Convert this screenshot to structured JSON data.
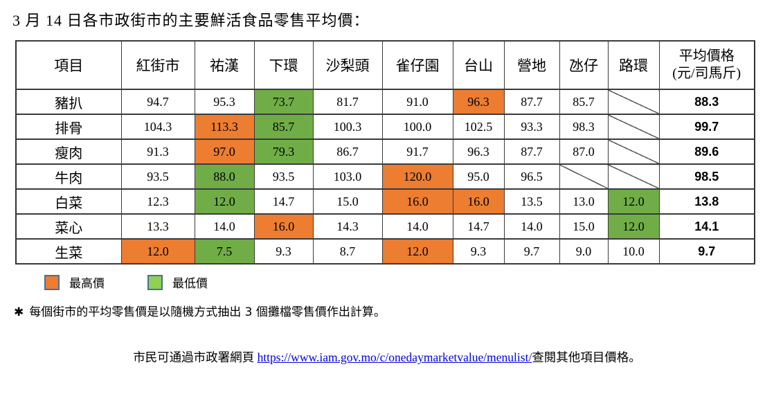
{
  "title": "3 月 14 日各市政街市的主要鮮活食品零售平均價：",
  "table": {
    "columns": [
      "項目",
      "紅街市",
      "祐漢",
      "下環",
      "沙梨頭",
      "雀仔園",
      "台山",
      "營地",
      "氹仔",
      "路環"
    ],
    "avg_header_line1": "平均價格",
    "avg_header_line2": "(元/司馬斤)",
    "rows": [
      {
        "item": "豬扒",
        "values": [
          {
            "v": "94.7"
          },
          {
            "v": "95.3"
          },
          {
            "v": "73.7",
            "hl": "min"
          },
          {
            "v": "81.7"
          },
          {
            "v": "91.0"
          },
          {
            "v": "96.3",
            "hl": "max"
          },
          {
            "v": "87.7"
          },
          {
            "v": "85.7"
          },
          {
            "slash": true
          }
        ],
        "avg": "88.3"
      },
      {
        "item": "排骨",
        "values": [
          {
            "v": "104.3"
          },
          {
            "v": "113.3",
            "hl": "max"
          },
          {
            "v": "85.7",
            "hl": "min"
          },
          {
            "v": "100.3"
          },
          {
            "v": "100.0"
          },
          {
            "v": "102.5"
          },
          {
            "v": "93.3"
          },
          {
            "v": "98.3"
          },
          {
            "slash": true
          }
        ],
        "avg": "99.7"
      },
      {
        "item": "瘦肉",
        "values": [
          {
            "v": "91.3"
          },
          {
            "v": "97.0",
            "hl": "max"
          },
          {
            "v": "79.3",
            "hl": "min"
          },
          {
            "v": "86.7"
          },
          {
            "v": "91.7"
          },
          {
            "v": "96.3"
          },
          {
            "v": "87.7"
          },
          {
            "v": "87.0"
          },
          {
            "slash": true
          }
        ],
        "avg": "89.6"
      },
      {
        "item": "牛肉",
        "values": [
          {
            "v": "93.5"
          },
          {
            "v": "88.0",
            "hl": "min"
          },
          {
            "v": "93.5"
          },
          {
            "v": "103.0"
          },
          {
            "v": "120.0",
            "hl": "max"
          },
          {
            "v": "95.0"
          },
          {
            "v": "96.5"
          },
          {
            "slash": true
          },
          {
            "slash": true
          }
        ],
        "avg": "98.5"
      },
      {
        "item": "白菜",
        "values": [
          {
            "v": "12.3"
          },
          {
            "v": "12.0",
            "hl": "min"
          },
          {
            "v": "14.7"
          },
          {
            "v": "15.0"
          },
          {
            "v": "16.0",
            "hl": "max"
          },
          {
            "v": "16.0",
            "hl": "max"
          },
          {
            "v": "13.5"
          },
          {
            "v": "13.0"
          },
          {
            "v": "12.0",
            "hl": "min"
          }
        ],
        "avg": "13.8"
      },
      {
        "item": "菜心",
        "values": [
          {
            "v": "13.3"
          },
          {
            "v": "14.0"
          },
          {
            "v": "16.0",
            "hl": "max"
          },
          {
            "v": "14.3"
          },
          {
            "v": "14.0"
          },
          {
            "v": "14.7"
          },
          {
            "v": "14.0"
          },
          {
            "v": "15.0"
          },
          {
            "v": "12.0",
            "hl": "min"
          }
        ],
        "avg": "14.1"
      },
      {
        "item": "生菜",
        "values": [
          {
            "v": "12.0",
            "hl": "max"
          },
          {
            "v": "7.5",
            "hl": "min"
          },
          {
            "v": "9.3"
          },
          {
            "v": "8.7"
          },
          {
            "v": "12.0",
            "hl": "max"
          },
          {
            "v": "9.3"
          },
          {
            "v": "9.7"
          },
          {
            "v": "9.0"
          },
          {
            "v": "10.0"
          }
        ],
        "avg": "9.7"
      }
    ]
  },
  "legend": [
    {
      "label": "最高價",
      "color": "#ED7D31"
    },
    {
      "label": "最低價",
      "color": "#92D050"
    }
  ],
  "colors": {
    "max_cell": "#ED7D31",
    "min_cell": "#70AD47",
    "link": "#0000E0"
  },
  "footnote": {
    "marker": "✱",
    "text": "每個街市的平均零售價是以隨機方式抽出 3 個攤檔零售價作出計算。"
  },
  "footer": {
    "prefix": "市民可通過市政署網頁 ",
    "link": "https://www.iam.gov.mo/c/onedaymarketvalue/menulist/",
    "suffix": "查閱其他項目價格。"
  }
}
